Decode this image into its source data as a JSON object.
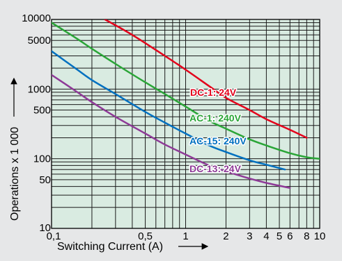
{
  "chart_data": {
    "type": "line",
    "xlabel": "Switching Current (A)",
    "ylabel": "Operations x 1 000",
    "x_scale": "log",
    "y_scale": "log",
    "xlim": [
      0.1,
      10
    ],
    "ylim": [
      10,
      10000
    ],
    "grid": true,
    "x_ticks": [
      {
        "value": 0.1,
        "label": "0,1"
      },
      {
        "value": 0.5,
        "label": "0,5"
      },
      {
        "value": 1,
        "label": "1"
      },
      {
        "value": 2,
        "label": "2"
      },
      {
        "value": 3,
        "label": "3"
      },
      {
        "value": 4,
        "label": "4"
      },
      {
        "value": 5,
        "label": "5"
      },
      {
        "value": 6,
        "label": "6"
      },
      {
        "value": 8,
        "label": "8"
      },
      {
        "value": 10,
        "label": "10"
      }
    ],
    "y_ticks": [
      {
        "value": 10,
        "label": "10"
      },
      {
        "value": 50,
        "label": "50"
      },
      {
        "value": 100,
        "label": "100"
      },
      {
        "value": 500,
        "label": "500"
      },
      {
        "value": 1000,
        "label": "1000"
      },
      {
        "value": 5000,
        "label": "5000"
      },
      {
        "value": 10000,
        "label": "10000"
      }
    ],
    "series": [
      {
        "name": "DC-1: 24V",
        "color": "#e3001b",
        "x": [
          0.25,
          0.4,
          0.7,
          1.0,
          1.5,
          2.0,
          3.0,
          4.0,
          6.0,
          8.0
        ],
        "y": [
          10000,
          6000,
          3000,
          1900,
          1100,
          750,
          500,
          370,
          260,
          200
        ]
      },
      {
        "name": "AC-1: 240V",
        "color": "#2aa537",
        "x": [
          0.1,
          0.15,
          0.2,
          0.3,
          0.5,
          0.7,
          1.0,
          1.5,
          2.0,
          3.0,
          4.0,
          6.0,
          8.0,
          10.0
        ],
        "y": [
          9000,
          5500,
          3800,
          2300,
          1250,
          850,
          560,
          350,
          270,
          190,
          155,
          120,
          105,
          100
        ]
      },
      {
        "name": "AC-15: 240V",
        "color": "#0070c0",
        "x": [
          0.1,
          0.15,
          0.2,
          0.3,
          0.5,
          0.7,
          1.0,
          1.5,
          2.0,
          3.0,
          4.0,
          5.5
        ],
        "y": [
          3500,
          2000,
          1350,
          850,
          470,
          330,
          230,
          155,
          125,
          95,
          82,
          70
        ]
      },
      {
        "name": "DC-13: 24V",
        "color": "#8e3a97",
        "x": [
          0.1,
          0.15,
          0.2,
          0.3,
          0.5,
          0.7,
          1.0,
          1.5,
          2.0,
          3.0,
          4.0,
          6.0
        ],
        "y": [
          1600,
          950,
          650,
          400,
          230,
          160,
          115,
          80,
          66,
          52,
          45,
          38
        ]
      }
    ]
  }
}
